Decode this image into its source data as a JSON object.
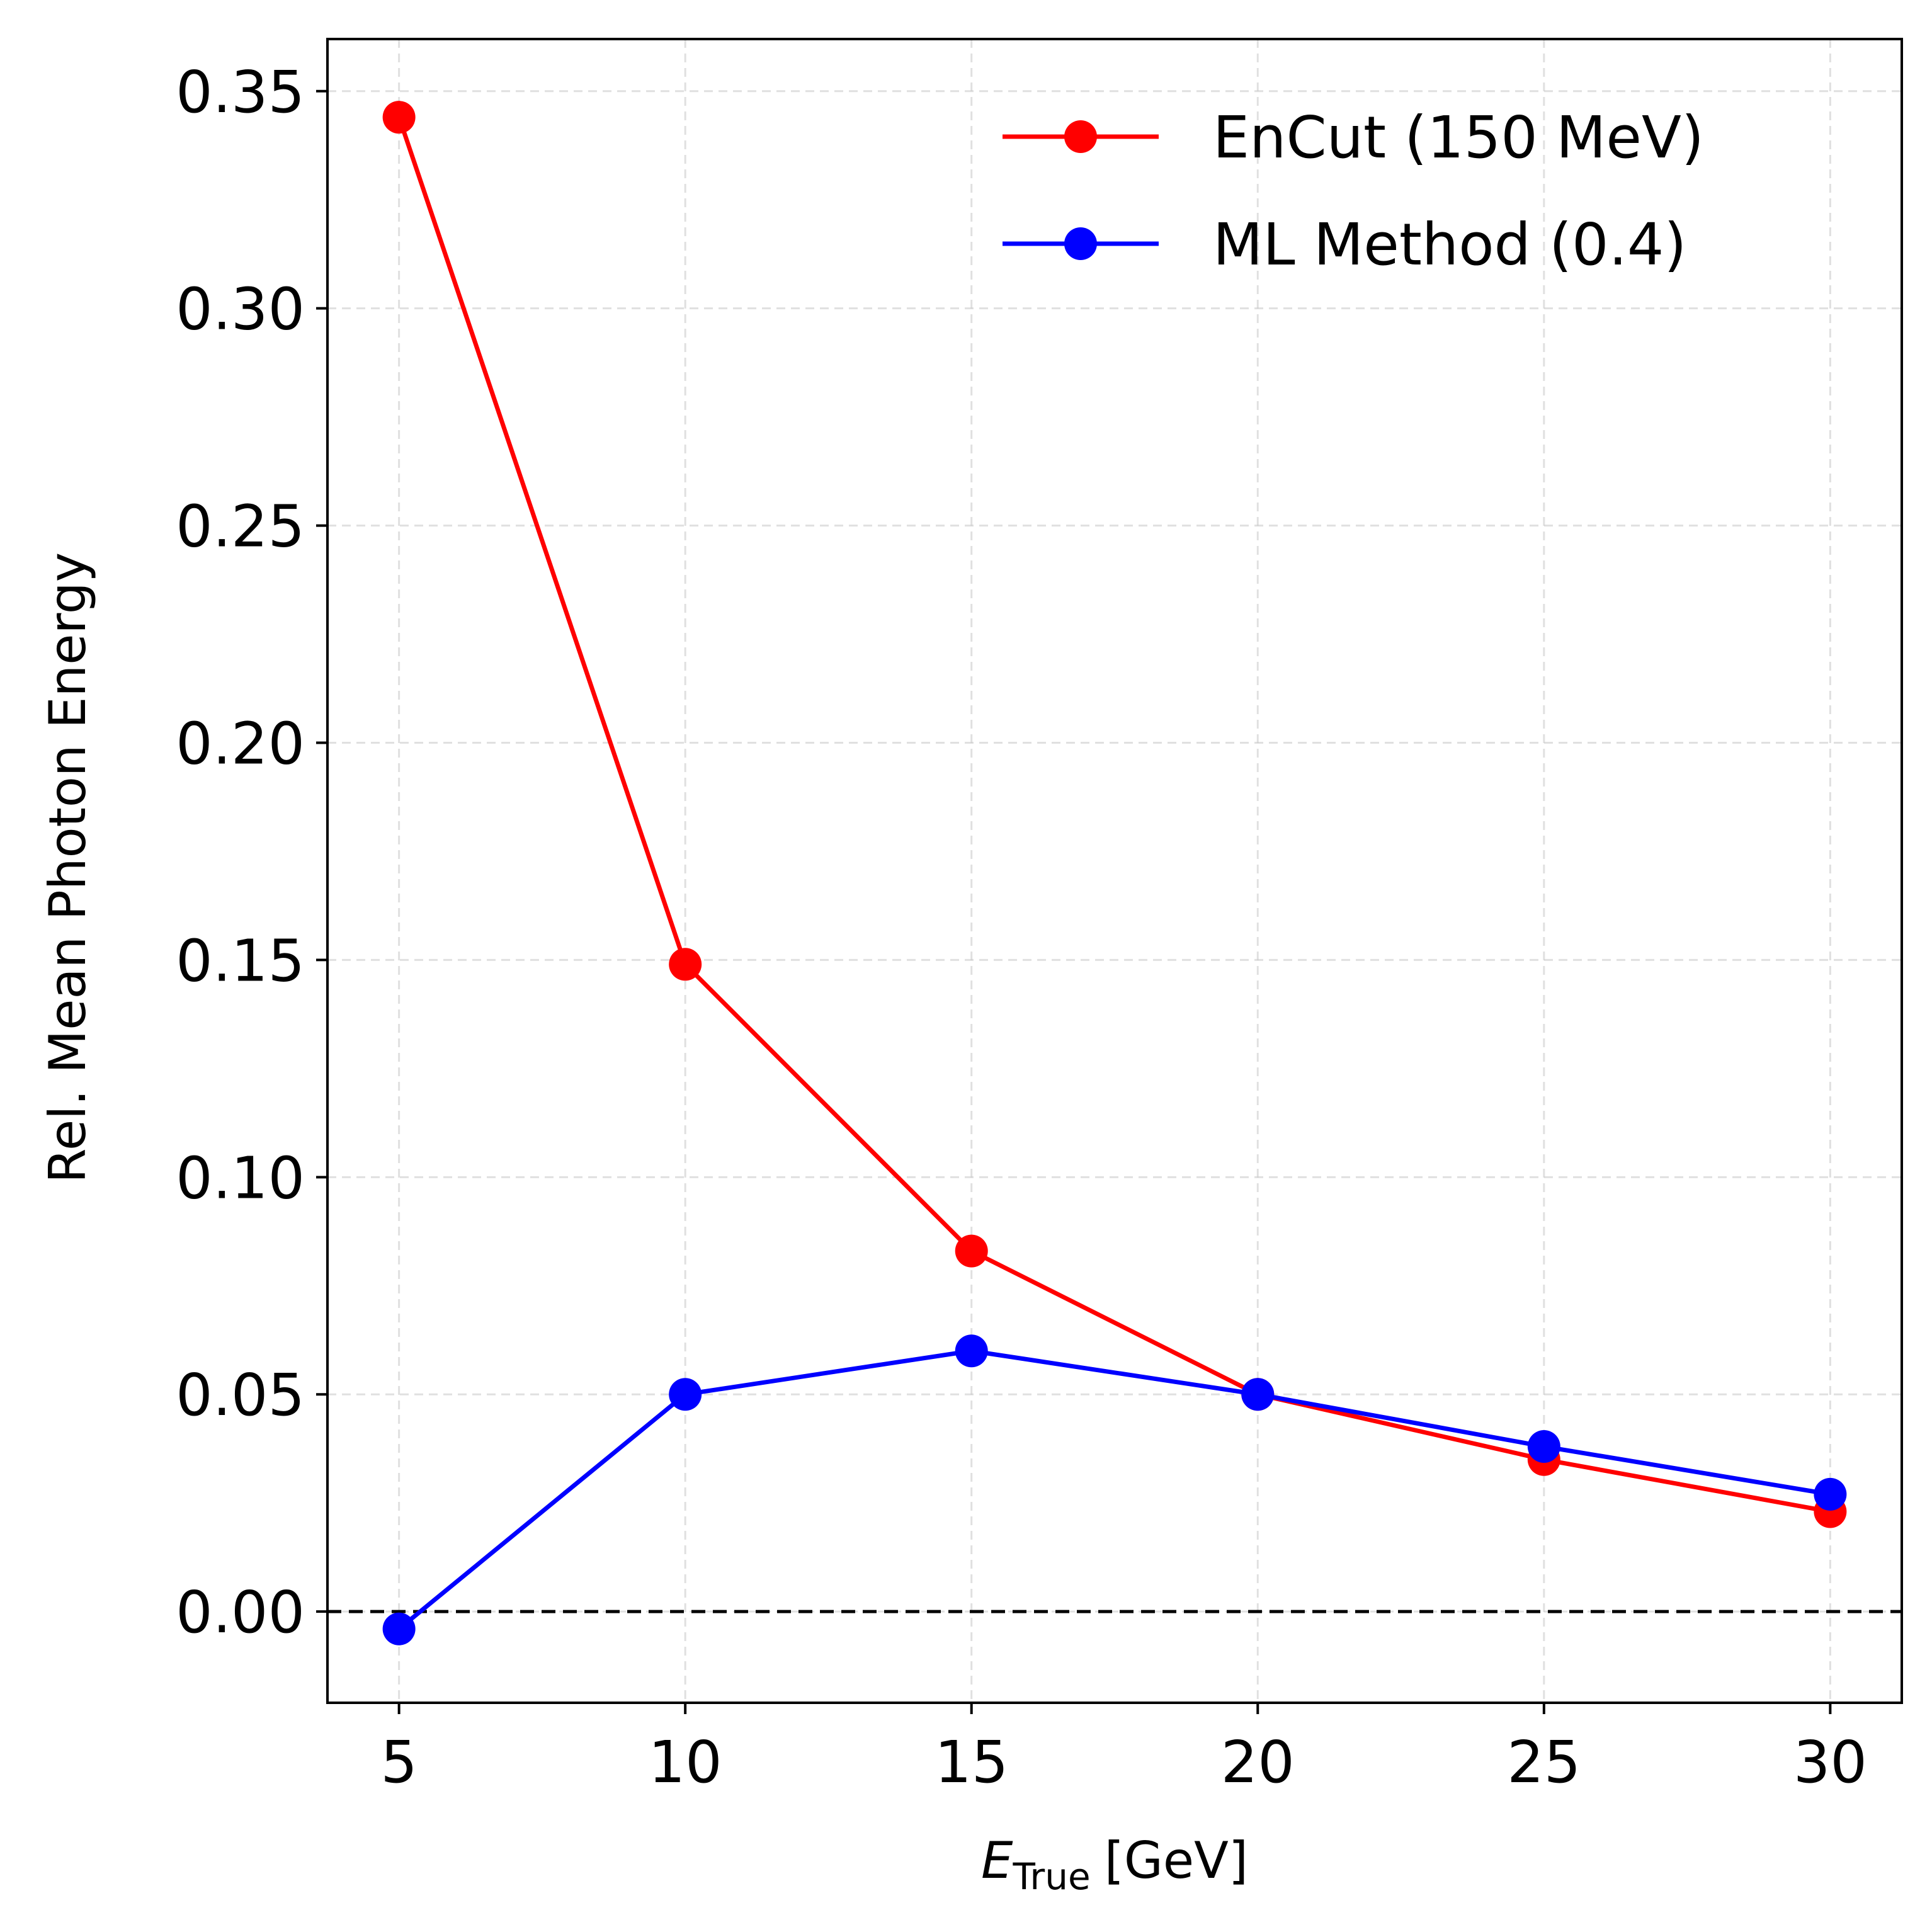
{
  "chart_data": {
    "type": "line",
    "title": "",
    "xlabel": {
      "main": "E",
      "subscript": "True",
      "unit": "[GeV]"
    },
    "ylabel": "Rel. Mean Photon Energy",
    "xlim": [
      3.75,
      31.25
    ],
    "ylim": [
      -0.021,
      0.362
    ],
    "xticks": [
      5,
      10,
      15,
      20,
      25,
      30
    ],
    "xtick_labels": [
      "5",
      "10",
      "15",
      "20",
      "25",
      "30"
    ],
    "yticks": [
      0.0,
      0.05,
      0.1,
      0.15,
      0.2,
      0.25,
      0.3,
      0.35
    ],
    "ytick_labels": [
      "0.00",
      "0.05",
      "0.10",
      "0.15",
      "0.20",
      "0.25",
      "0.30",
      "0.35"
    ],
    "grid": true,
    "reference_line": {
      "y": 0.0,
      "style": "dashed",
      "color": "#000000"
    },
    "legend_position": "top-right",
    "x": [
      5,
      10,
      15,
      20,
      25,
      30
    ],
    "series": [
      {
        "name": "EnCut (150 MeV)",
        "color": "#ff0000",
        "marker": "circle",
        "values": [
          0.344,
          0.149,
          0.083,
          0.05,
          0.035,
          0.023
        ]
      },
      {
        "name": "ML Method (0.4)",
        "color": "#0000ff",
        "marker": "circle",
        "values": [
          -0.004,
          0.05,
          0.06,
          0.05,
          0.038,
          0.027
        ]
      }
    ]
  }
}
